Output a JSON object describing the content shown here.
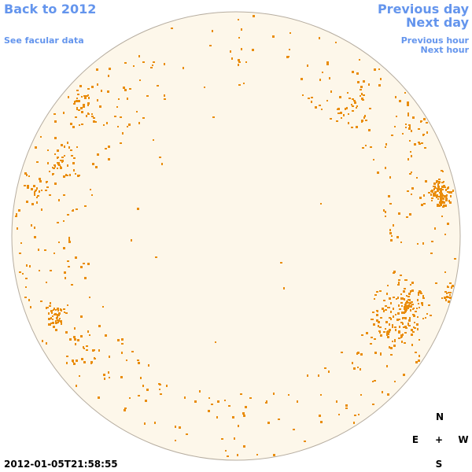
{
  "header": {
    "back_link": "Back to 2012",
    "facular_link": "See facular data"
  },
  "nav": {
    "previous_day": "Previous day",
    "next_day": "Next day",
    "previous_hour": "Previous hour",
    "next_hour": "Next hour"
  },
  "compass": {
    "north": "N",
    "east": "E",
    "center": "+",
    "west": "W",
    "south": "S"
  },
  "timestamp": "2012-01-05T21:58:55"
}
